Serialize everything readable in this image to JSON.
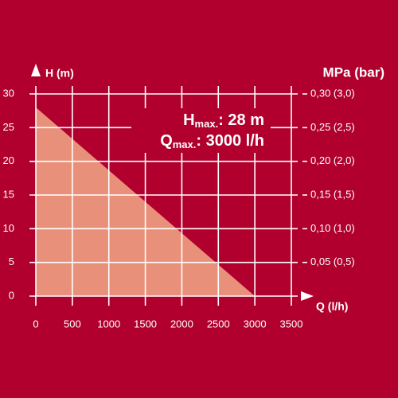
{
  "chart_data": {
    "type": "area",
    "x_label": "Q (l/h)",
    "y_label": "H (m)",
    "y2_label": "MPa (bar)",
    "x": [
      0,
      3000
    ],
    "series": [
      {
        "name": "H",
        "color": "#e8907a",
        "values": [
          28,
          0
        ]
      }
    ],
    "xlim": [
      0,
      3500
    ],
    "xticks": [
      0,
      500,
      1000,
      1500,
      2000,
      2500,
      3000,
      3500
    ],
    "ylim": [
      0,
      30
    ],
    "yticks": [
      0,
      5,
      10,
      15,
      20,
      25,
      30
    ],
    "y2lim": [
      0,
      0.3
    ],
    "y2ticks": [
      {
        "value": 0.05,
        "label": "0,05 (0,5)"
      },
      {
        "value": 0.1,
        "label": "0,10 (1,0)"
      },
      {
        "value": 0.15,
        "label": "0,15 (1,5)"
      },
      {
        "value": 0.2,
        "label": "0,20 (2,0)"
      },
      {
        "value": 0.25,
        "label": "0,25 (2,5)"
      },
      {
        "value": 0.3,
        "label": "0,30 (3,0)"
      }
    ],
    "grid": true,
    "annotations": [
      {
        "main": "H",
        "sub": "max.",
        "rest": ": 28 m"
      },
      {
        "main": "Q",
        "sub": "max.",
        "rest": ": 3000 l/h"
      }
    ]
  }
}
